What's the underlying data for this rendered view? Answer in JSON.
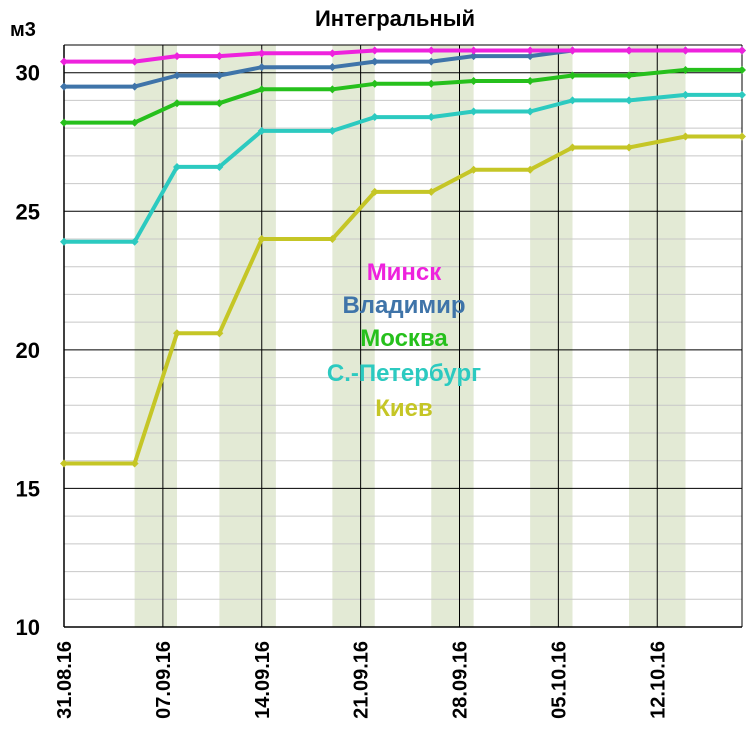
{
  "chart_data": {
    "type": "line",
    "title": "Интегральный",
    "ylabel": "м3",
    "ylim": [
      10,
      31
    ],
    "y_ticks": [
      10,
      15,
      20,
      25,
      30
    ],
    "x_tick_labels": [
      "31.08.16",
      "07.09.16",
      "14.09.16",
      "21.09.16",
      "28.09.16",
      "05.10.16",
      "12.10.16"
    ],
    "x_tick_days": [
      0,
      7,
      14,
      21,
      28,
      35,
      42
    ],
    "x_range_days": [
      0,
      48
    ],
    "weekend_bands_days": [
      [
        5,
        8
      ],
      [
        11,
        15
      ],
      [
        19,
        22
      ],
      [
        26,
        29
      ],
      [
        33,
        36
      ],
      [
        40,
        44
      ]
    ],
    "x_days": [
      0,
      5,
      8,
      11,
      14,
      19,
      22,
      26,
      29,
      33,
      36,
      40,
      44,
      48
    ],
    "series": [
      {
        "name": "Минск",
        "color": "#ee22dd",
        "values": [
          30.4,
          30.4,
          30.6,
          30.6,
          30.7,
          30.7,
          30.8,
          30.8,
          30.8,
          30.8,
          30.8,
          30.8,
          30.8,
          30.8
        ]
      },
      {
        "name": "Владимир",
        "color": "#3f74a9",
        "values": [
          29.5,
          29.5,
          29.9,
          29.9,
          30.2,
          30.2,
          30.4,
          30.4,
          30.6,
          30.6,
          30.8,
          30.8,
          30.8,
          30.8
        ]
      },
      {
        "name": "Москва",
        "color": "#26c01c",
        "values": [
          28.2,
          28.2,
          28.9,
          28.9,
          29.4,
          29.4,
          29.6,
          29.6,
          29.7,
          29.7,
          29.9,
          29.9,
          30.1,
          30.1
        ]
      },
      {
        "name": "С.-Петербург",
        "color": "#2ccac0",
        "values": [
          23.9,
          23.9,
          26.6,
          26.6,
          27.9,
          27.9,
          28.4,
          28.4,
          28.6,
          28.6,
          29.0,
          29.0,
          29.2,
          29.2
        ]
      },
      {
        "name": "Киев",
        "color": "#c5c626",
        "values": [
          15.9,
          15.9,
          20.6,
          20.6,
          24.0,
          24.0,
          25.7,
          25.7,
          26.5,
          26.5,
          27.3,
          27.3,
          27.7,
          27.7
        ]
      }
    ],
    "grid": true,
    "legend_position": "center"
  }
}
